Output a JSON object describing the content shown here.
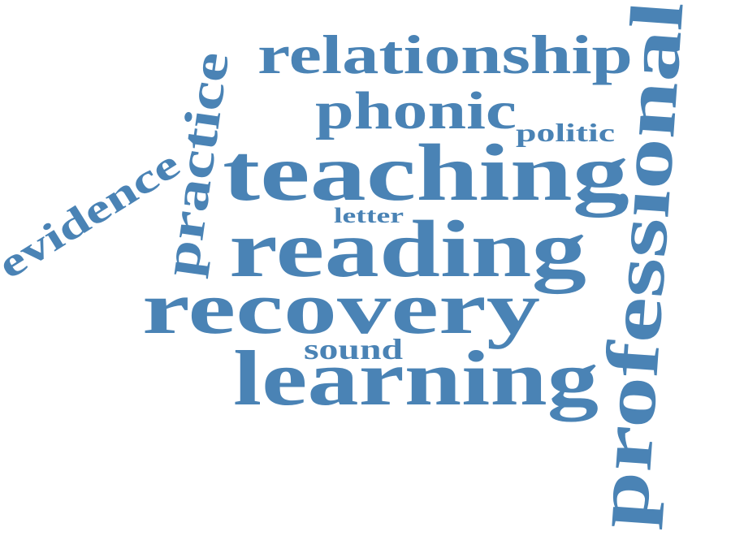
{
  "colors": {
    "word": "#4a83b5",
    "background": "#ffffff"
  },
  "words": {
    "relationship": "relationship",
    "phonic": "phonic",
    "politic": "politic",
    "practice": "practice",
    "evidence": "evidence",
    "teaching": "teaching",
    "letter": "letter",
    "reading": "reading",
    "recovery": "recovery",
    "sound": "sound",
    "learning": "learning",
    "professional": "professional"
  }
}
